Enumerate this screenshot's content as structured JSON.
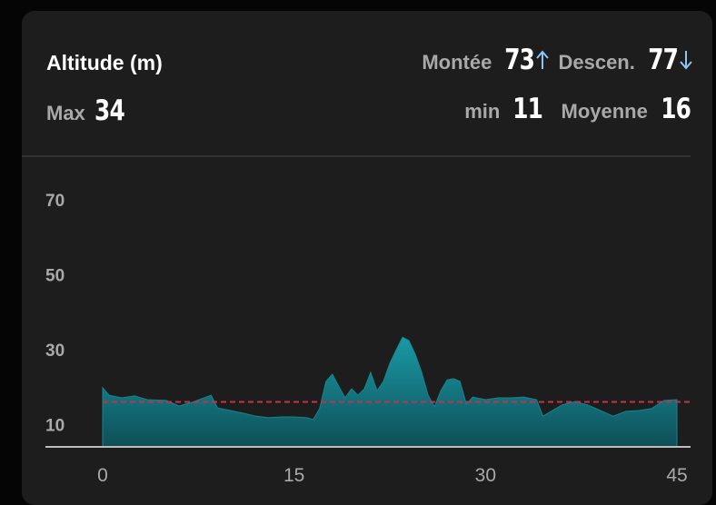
{
  "chart_data": {
    "type": "area",
    "title": "Altitude (m)",
    "stats": [
      {
        "label": "Max",
        "value": 34
      },
      {
        "label": "Montée",
        "value": 73
      },
      {
        "label": "Descen.",
        "value": 77
      },
      {
        "label": "min",
        "value": 11
      },
      {
        "label": "Moyenne",
        "value": 16
      }
    ],
    "x": [
      0,
      0.5,
      1.5,
      2.5,
      3.5,
      5,
      6,
      7,
      8.5,
      9,
      10,
      11,
      12,
      13,
      14,
      15,
      16,
      16.5,
      17,
      17.5,
      18,
      18.5,
      19,
      19.5,
      20,
      20.5,
      21,
      21.5,
      22,
      22.5,
      23,
      23.5,
      24,
      24.5,
      25,
      25.5,
      26,
      26.5,
      27,
      27.5,
      28,
      28.5,
      29,
      30,
      31,
      32,
      33,
      34,
      34.5,
      35,
      36,
      37,
      38,
      39,
      40,
      41,
      42,
      43,
      44,
      45
    ],
    "values": [
      19.8,
      17.8,
      17.1,
      17.6,
      16.6,
      16.4,
      14.9,
      15.9,
      17.8,
      14.4,
      13.7,
      13,
      12.2,
      11.8,
      12,
      12,
      11.8,
      11.3,
      14.2,
      21.5,
      23.4,
      20.2,
      17.1,
      19.5,
      17.8,
      19.5,
      23.9,
      19,
      21.5,
      26.3,
      29.9,
      33.3,
      32.4,
      28.7,
      23.9,
      17.8,
      14.7,
      19,
      21.9,
      22.2,
      21.5,
      15.4,
      17.3,
      16.6,
      17.1,
      17.1,
      17.3,
      16.6,
      12.2,
      13.2,
      15.2,
      16.1,
      15.2,
      13.7,
      12.2,
      13.5,
      13.7,
      14.2,
      16.4,
      16.6
    ],
    "color": "#17848f",
    "avg_color": "#c2334a",
    "xlim": [
      0,
      45
    ],
    "xticks": [
      0,
      15,
      30,
      45
    ],
    "ylim": [
      4,
      80
    ],
    "yticks": [
      10,
      30,
      50,
      70
    ]
  }
}
